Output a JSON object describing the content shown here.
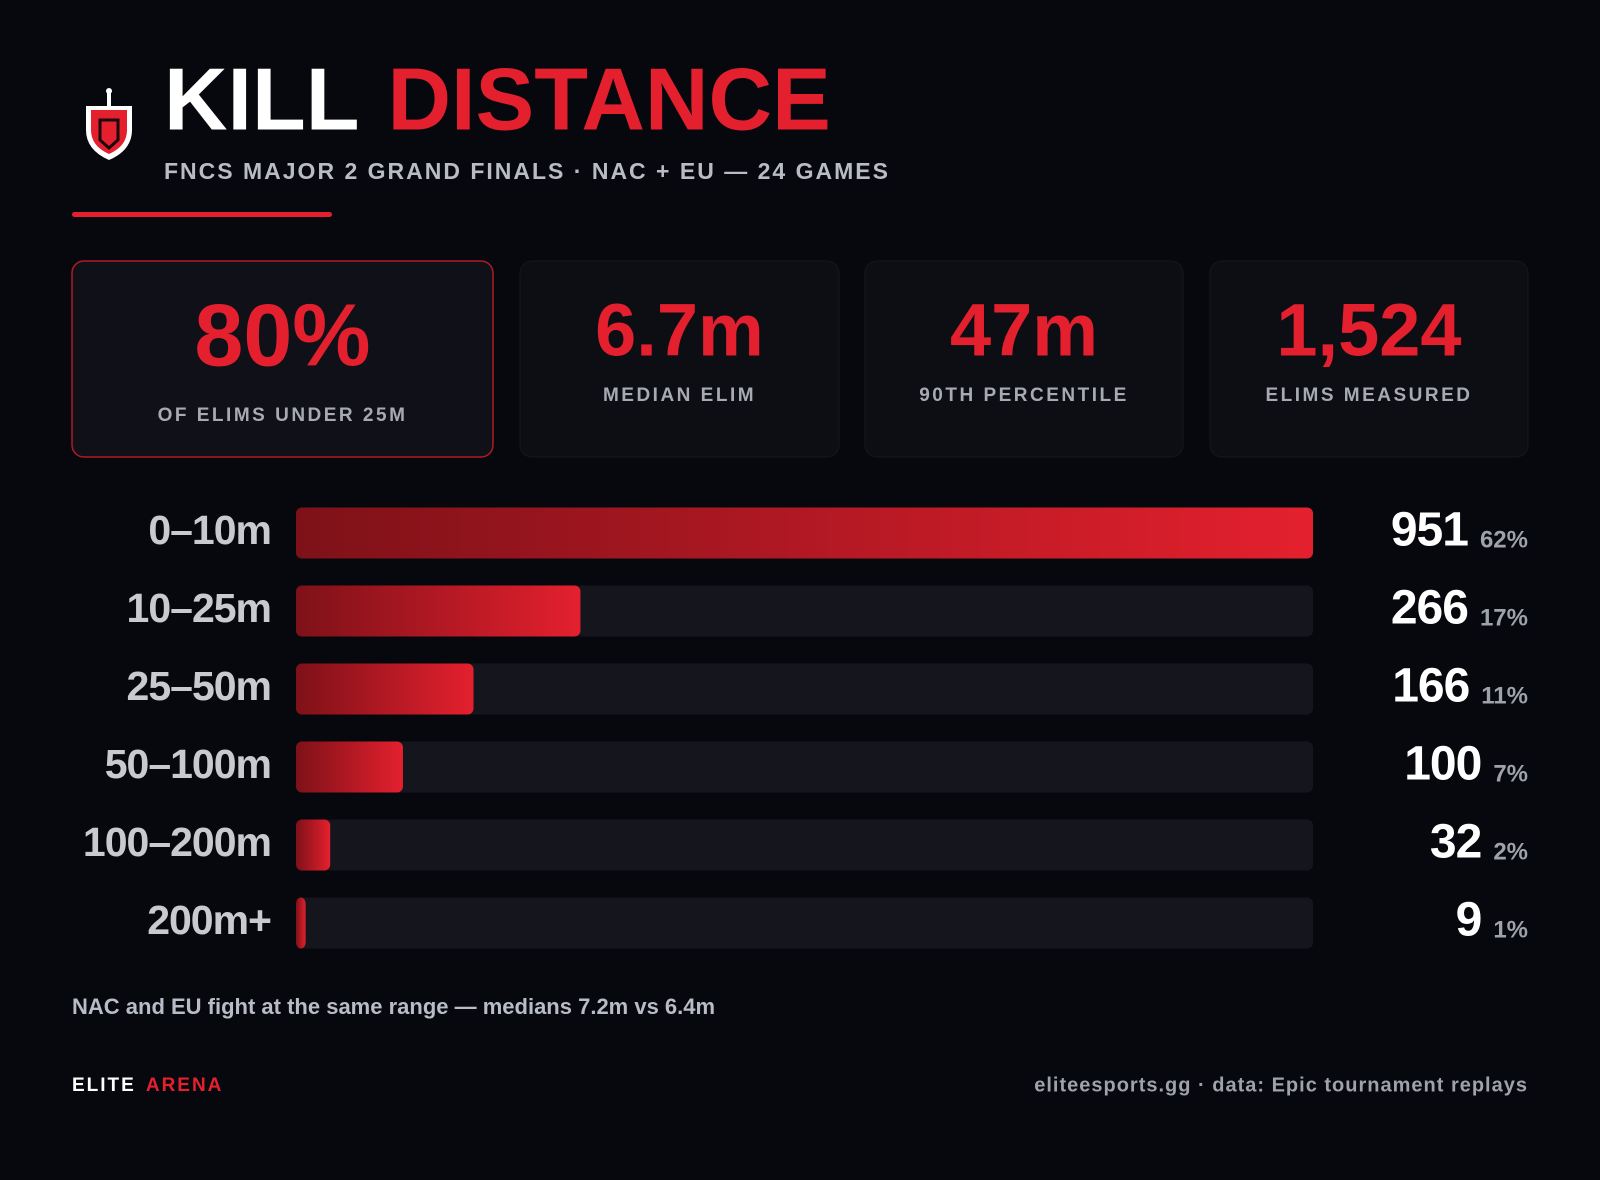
{
  "header": {
    "title_white": "KILL",
    "title_red": "DISTANCE",
    "subtitle": "FNCS MAJOR 2 GRAND FINALS · NAC + EU — 24 GAMES"
  },
  "stats": [
    {
      "value": "80%",
      "label": "OF ELIMS UNDER 25M"
    },
    {
      "value": "6.7m",
      "label": "MEDIAN ELIM"
    },
    {
      "value": "47m",
      "label": "90TH PERCENTILE"
    },
    {
      "value": "1,524",
      "label": "ELIMS MEASURED"
    }
  ],
  "chart_data": {
    "type": "bar",
    "orientation": "horizontal",
    "categories": [
      "0–10m",
      "10–25m",
      "25–50m",
      "50–100m",
      "100–200m",
      "200m+"
    ],
    "values": [
      951,
      266,
      166,
      100,
      32,
      9
    ],
    "shares": {
      "values": [
        62,
        17,
        11,
        7,
        2,
        1
      ],
      "value_labels": [
        "62%",
        "17%",
        "11%",
        "7%",
        "2%",
        "1%"
      ]
    },
    "xlim": [
      0,
      951
    ],
    "color": "#e4202e",
    "color_dark": "#7e1118",
    "track_color": "#15161d"
  },
  "footnote": "NAC and EU fight at the same range — medians 7.2m vs 6.4m",
  "footer": {
    "brand_white": "ELITE",
    "brand_red": "ARENA",
    "source": "eliteesports.gg · data: Epic tournament replays"
  }
}
